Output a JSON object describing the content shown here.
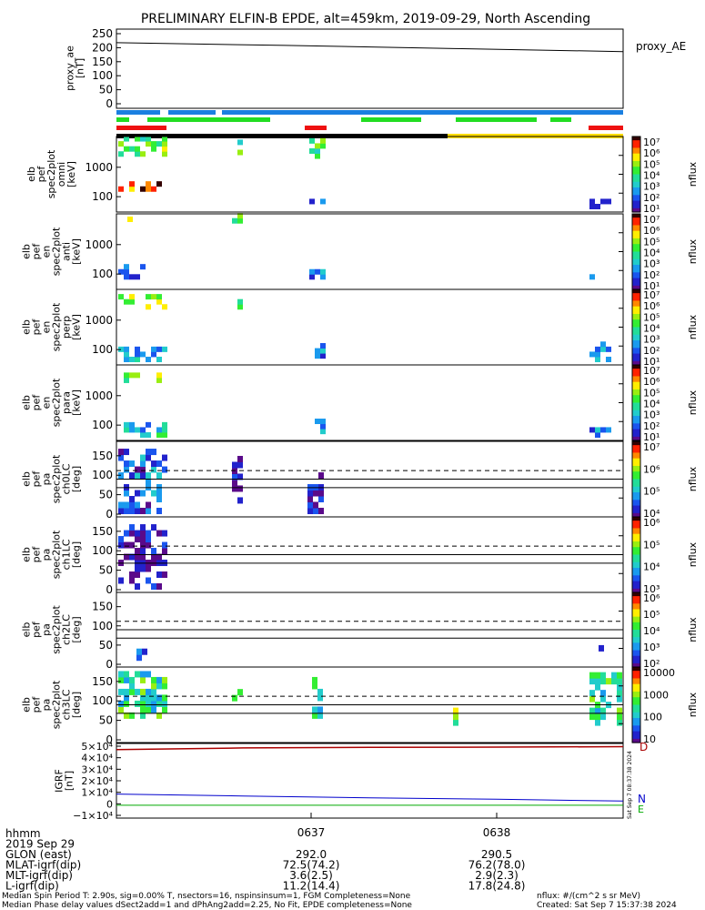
{
  "title": "PRELIMINARY ELFIN-B EPDE, alt=459km, 2019-09-29, North Ascending",
  "proxy_panel": {
    "ylabel_lines": [
      "proxy_ae",
      "[nT]"
    ],
    "yticks": [
      "250",
      "200",
      "150",
      "100",
      "50",
      "0"
    ],
    "series_label": "proxy_AE"
  },
  "energy_panels": [
    {
      "ylabel_lines": [
        "elb",
        "pef",
        "spec2plot",
        "omni",
        "[keV]"
      ],
      "yticks": [
        "1000",
        "100"
      ]
    },
    {
      "ylabel_lines": [
        "elb",
        "pef",
        "en",
        "spec2plot",
        "anti",
        "[keV]"
      ],
      "yticks": [
        "1000",
        "100"
      ]
    },
    {
      "ylabel_lines": [
        "elb",
        "pef",
        "en",
        "spec2plot",
        "perp",
        "[keV]"
      ],
      "yticks": [
        "1000",
        "100"
      ]
    },
    {
      "ylabel_lines": [
        "elb",
        "pef",
        "en",
        "spec2plot",
        "para",
        "[keV]"
      ],
      "yticks": [
        "1000",
        "100"
      ]
    }
  ],
  "pa_panels": [
    {
      "ylabel_lines": [
        "elb",
        "pef",
        "pa",
        "spec2plot",
        "ch0LC",
        "[deg]"
      ],
      "yticks": [
        "150",
        "100",
        "50",
        "0"
      ]
    },
    {
      "ylabel_lines": [
        "elb",
        "pef",
        "pa",
        "spec2plot",
        "ch1LC",
        "[deg]"
      ],
      "yticks": [
        "150",
        "100",
        "50",
        "0"
      ]
    },
    {
      "ylabel_lines": [
        "elb",
        "pef",
        "pa",
        "spec2plot",
        "ch2LC",
        "[deg]"
      ],
      "yticks": [
        "150",
        "100",
        "50",
        "0"
      ]
    },
    {
      "ylabel_lines": [
        "elb",
        "pef",
        "pa",
        "spec2plot",
        "ch3LC",
        "[deg]"
      ],
      "yticks": [
        "150",
        "100",
        "50",
        "0"
      ]
    }
  ],
  "colorbars": [
    {
      "ticks": [
        "10⁷",
        "10⁶",
        "10⁵",
        "10⁴",
        "10³",
        "10²",
        "10¹"
      ],
      "label": "nflux"
    },
    {
      "ticks": [
        "10⁷",
        "10⁶",
        "10⁵",
        "10⁴",
        "10³",
        "10²",
        "10¹"
      ],
      "label": "nflux"
    },
    {
      "ticks": [
        "10⁷",
        "10⁶",
        "10⁵",
        "10⁴",
        "10³",
        "10²",
        "10¹"
      ],
      "label": "nflux"
    },
    {
      "ticks": [
        "10⁷",
        "10⁶",
        "10⁵",
        "10⁴",
        "10³",
        "10²",
        "10¹"
      ],
      "label": "nflux"
    },
    {
      "ticks": [
        "10⁷",
        "10⁶",
        "10⁵",
        "10⁴"
      ],
      "label": "nflux"
    },
    {
      "ticks": [
        "10⁶",
        "10⁵",
        "10⁴",
        "10³"
      ],
      "label": "nflux"
    },
    {
      "ticks": [
        "10⁶",
        "10⁵",
        "10⁴",
        "10³",
        "10²"
      ],
      "label": "nflux"
    },
    {
      "ticks": [
        "10000",
        "1000",
        "100",
        "10"
      ],
      "label": "nflux"
    }
  ],
  "igrf_panel": {
    "ylabel_lines": [
      "IGRF",
      "[nT]"
    ],
    "yticks": [
      "5×10⁴",
      "4×10⁴",
      "3×10⁴",
      "2×10⁴",
      "1×10⁴",
      "0",
      "−1×10⁴"
    ],
    "component_labels": {
      "D": "D",
      "N": "N",
      "E": "E"
    },
    "timestamp": "Sat Sep 7 08:37:38 2024"
  },
  "time_axis": {
    "ticks": [
      "0637",
      "0638"
    ],
    "rows": [
      {
        "label": "hhmm",
        "v1": "",
        "v2": ""
      },
      {
        "label": "2019 Sep 29",
        "v1": "",
        "v2": ""
      },
      {
        "label": "GLON (east)",
        "v1": "292.0",
        "v2": "290.5"
      },
      {
        "label": "MLAT-igrf(dip)",
        "v1": "72.5(74.2)",
        "v2": "76.2(78.0)"
      },
      {
        "label": "MLT-igrf(dip)",
        "v1": "3.6(2.5)",
        "v2": "2.9(2.3)"
      },
      {
        "label": "L-igrf(dip)",
        "v1": "11.2(14.4)",
        "v2": "17.8(24.8)"
      }
    ]
  },
  "footer": {
    "line1": "Median Spin Period T: 2.90s, sig=0.00% T, nsectors=16, nspinsinsum=1, FGM Completeness=None",
    "line2": "Median Phase delay values dSect2add=1 and dPhAng2add=2.25, No Fit, EPDE completeness=None",
    "nflux_units": "nflux: #/(cm^2 s sr MeV)",
    "created": "Created: Sat Sep  7 15:37:38 2024"
  },
  "colors": {
    "bar_blue": "#1a7fe0",
    "bar_green": "#22dd22",
    "bar_red": "#ee1111",
    "bar_black": "#000000",
    "bar_yellow": "#ffdd00",
    "d_line": "#aa0000",
    "n_line": "#0000cc",
    "e_line": "#00aa00"
  },
  "chart_data": [
    {
      "type": "line",
      "title": "PRELIMINARY ELFIN-B EPDE, alt=459km, 2019-09-29, North Ascending",
      "ylabel": "proxy_ae [nT]",
      "ylim": [
        0,
        250
      ],
      "x": [
        "06:36:00",
        "06:37:00",
        "06:38:00",
        "06:38:50"
      ],
      "series": [
        {
          "name": "proxy_AE",
          "values": [
            218,
            208,
            197,
            186
          ]
        }
      ]
    },
    {
      "type": "heatmap",
      "ylabel": "elb pef spec2plot omni [keV]",
      "yscale": "log",
      "xticks": [
        "0637",
        "0638"
      ],
      "colorbar": {
        "label": "nflux",
        "range": [
          10,
          10000000
        ],
        "scale": "log"
      },
      "description_of_cells": "scattered flux cells (0.15-1 normalized log-flux) concentrated near 06:36:10-06:36:30, 06:37:00 and 06:38:45"
    },
    {
      "type": "heatmap",
      "ylabel": "elb pef pa spec2plot ch0LC [deg]",
      "ylim": [
        0,
        180
      ],
      "xticks": [
        "0637",
        "0638"
      ],
      "reference_lines_deg": [
        112,
        90,
        68
      ],
      "colorbar": {
        "label": "nflux",
        "range": [
          10000,
          10000000
        ],
        "scale": "log"
      }
    },
    {
      "type": "line",
      "ylabel": "IGRF [nT]",
      "ylim": [
        -10000,
        50000
      ],
      "series": [
        {
          "name": "D",
          "values": [
            47000,
            48500,
            49000,
            49200,
            49600
          ]
        },
        {
          "name": "N",
          "values": [
            8500,
            6800,
            5200,
            4000,
            2400
          ]
        },
        {
          "name": "E",
          "values": [
            -1200,
            -1200,
            -1200,
            -1200,
            -1200
          ]
        }
      ]
    }
  ]
}
